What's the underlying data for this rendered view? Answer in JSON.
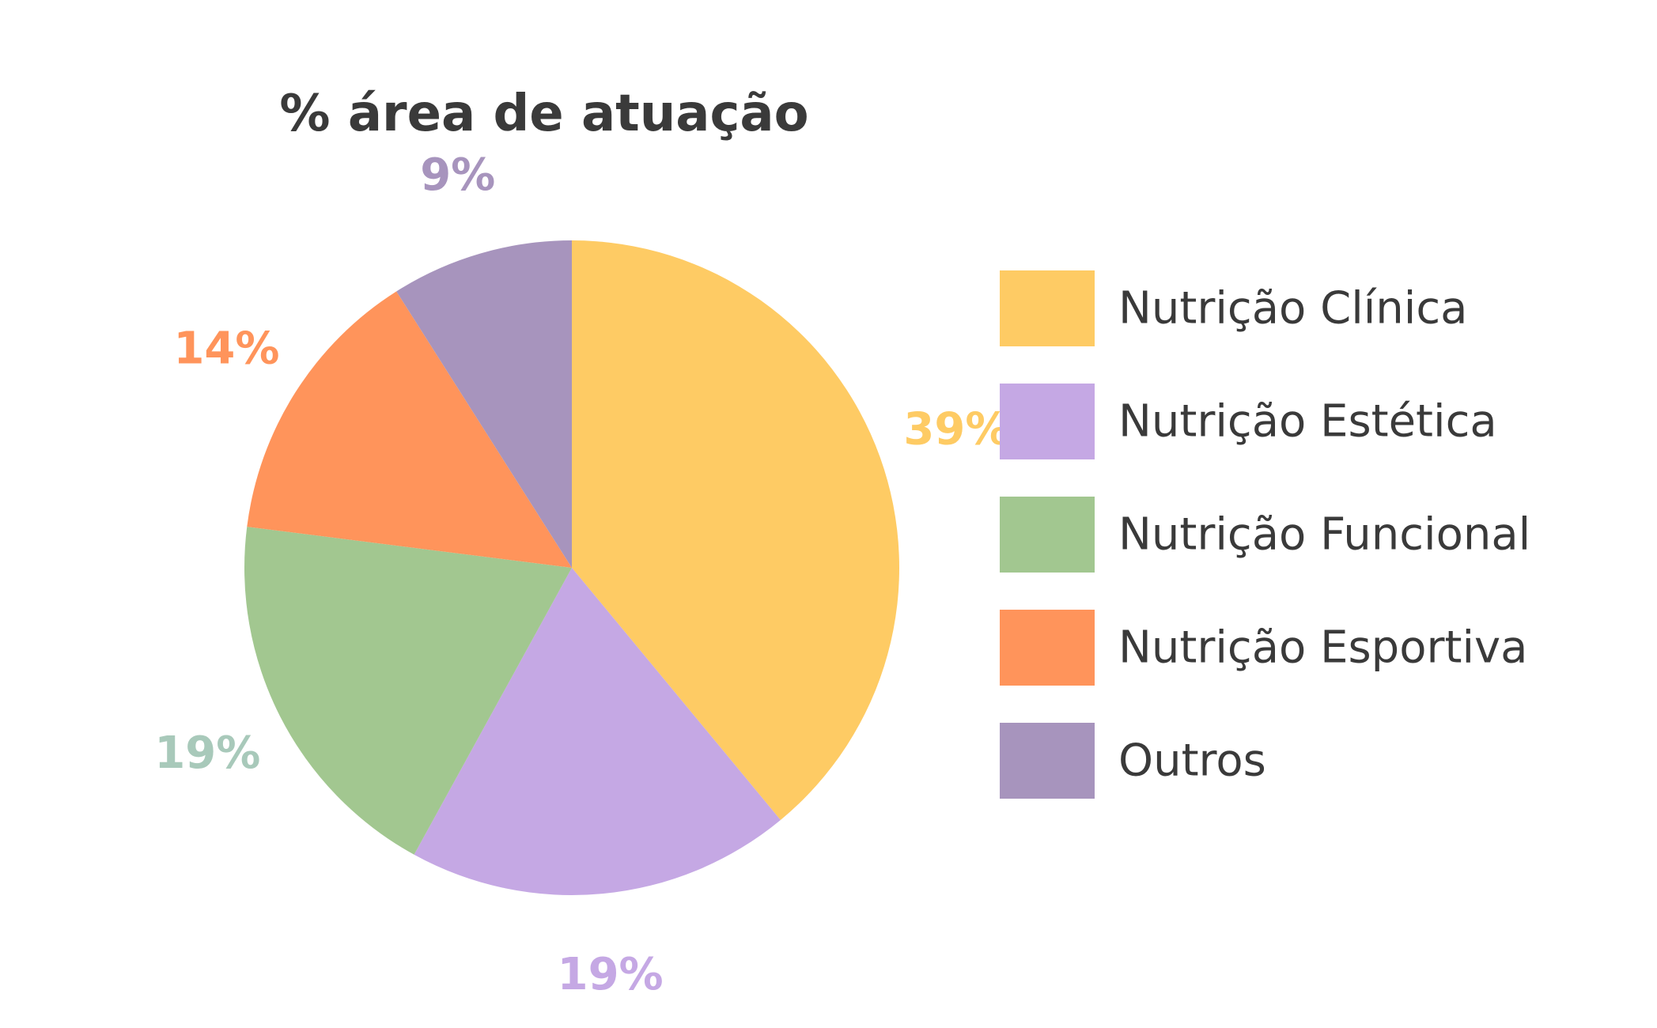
{
  "chart_data": {
    "type": "pie",
    "title": "% área de atuação",
    "categories": [
      "Nutrição Clínica",
      "Nutrição Estética",
      "Nutrição Funcional",
      "Nutrição Esportiva",
      "Outros"
    ],
    "values": [
      39,
      19,
      19,
      14,
      9
    ],
    "labels": [
      "39%",
      "19%",
      "19%",
      "14%",
      "9%"
    ],
    "colors": [
      "#FECB64",
      "#C5A8E4",
      "#A2C790",
      "#FF945B",
      "#A794BD"
    ],
    "label_colors": [
      "#FECB64",
      "#C5A8E4",
      "#A8C9BA",
      "#FF945B",
      "#A794BD"
    ],
    "legend_placement": "right"
  }
}
